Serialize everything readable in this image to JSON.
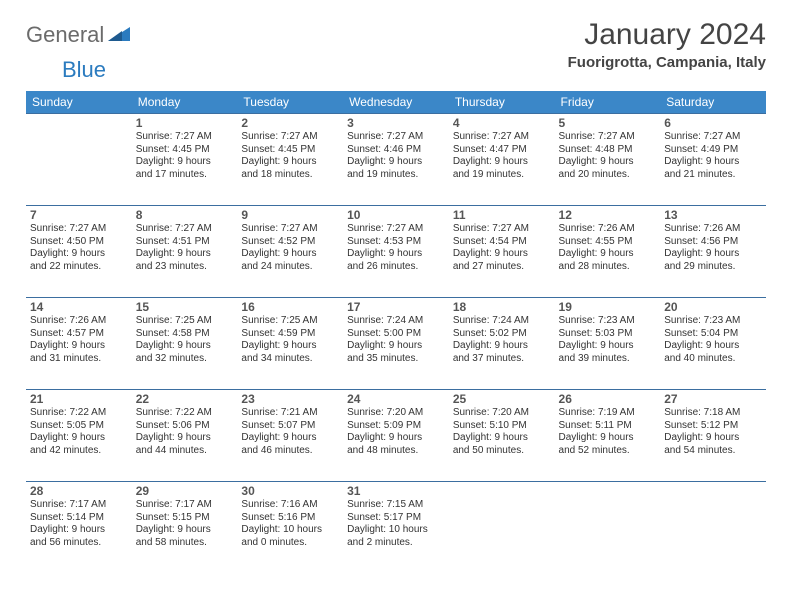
{
  "brand": {
    "gray": "General",
    "blue": "Blue"
  },
  "title": "January 2024",
  "location": "Fuorigrotta, Campania, Italy",
  "colors": {
    "header_bg": "#3b87c8",
    "header_text": "#ffffff",
    "row_border": "#3b6ea0",
    "logo_gray": "#6b6b6b",
    "logo_blue": "#2b7bbf",
    "body_text": "#333333"
  },
  "day_headers": [
    "Sunday",
    "Monday",
    "Tuesday",
    "Wednesday",
    "Thursday",
    "Friday",
    "Saturday"
  ],
  "weeks": [
    [
      null,
      {
        "n": "1",
        "sr": "Sunrise: 7:27 AM",
        "ss": "Sunset: 4:45 PM",
        "d1": "Daylight: 9 hours",
        "d2": "and 17 minutes."
      },
      {
        "n": "2",
        "sr": "Sunrise: 7:27 AM",
        "ss": "Sunset: 4:45 PM",
        "d1": "Daylight: 9 hours",
        "d2": "and 18 minutes."
      },
      {
        "n": "3",
        "sr": "Sunrise: 7:27 AM",
        "ss": "Sunset: 4:46 PM",
        "d1": "Daylight: 9 hours",
        "d2": "and 19 minutes."
      },
      {
        "n": "4",
        "sr": "Sunrise: 7:27 AM",
        "ss": "Sunset: 4:47 PM",
        "d1": "Daylight: 9 hours",
        "d2": "and 19 minutes."
      },
      {
        "n": "5",
        "sr": "Sunrise: 7:27 AM",
        "ss": "Sunset: 4:48 PM",
        "d1": "Daylight: 9 hours",
        "d2": "and 20 minutes."
      },
      {
        "n": "6",
        "sr": "Sunrise: 7:27 AM",
        "ss": "Sunset: 4:49 PM",
        "d1": "Daylight: 9 hours",
        "d2": "and 21 minutes."
      }
    ],
    [
      {
        "n": "7",
        "sr": "Sunrise: 7:27 AM",
        "ss": "Sunset: 4:50 PM",
        "d1": "Daylight: 9 hours",
        "d2": "and 22 minutes."
      },
      {
        "n": "8",
        "sr": "Sunrise: 7:27 AM",
        "ss": "Sunset: 4:51 PM",
        "d1": "Daylight: 9 hours",
        "d2": "and 23 minutes."
      },
      {
        "n": "9",
        "sr": "Sunrise: 7:27 AM",
        "ss": "Sunset: 4:52 PM",
        "d1": "Daylight: 9 hours",
        "d2": "and 24 minutes."
      },
      {
        "n": "10",
        "sr": "Sunrise: 7:27 AM",
        "ss": "Sunset: 4:53 PM",
        "d1": "Daylight: 9 hours",
        "d2": "and 26 minutes."
      },
      {
        "n": "11",
        "sr": "Sunrise: 7:27 AM",
        "ss": "Sunset: 4:54 PM",
        "d1": "Daylight: 9 hours",
        "d2": "and 27 minutes."
      },
      {
        "n": "12",
        "sr": "Sunrise: 7:26 AM",
        "ss": "Sunset: 4:55 PM",
        "d1": "Daylight: 9 hours",
        "d2": "and 28 minutes."
      },
      {
        "n": "13",
        "sr": "Sunrise: 7:26 AM",
        "ss": "Sunset: 4:56 PM",
        "d1": "Daylight: 9 hours",
        "d2": "and 29 minutes."
      }
    ],
    [
      {
        "n": "14",
        "sr": "Sunrise: 7:26 AM",
        "ss": "Sunset: 4:57 PM",
        "d1": "Daylight: 9 hours",
        "d2": "and 31 minutes."
      },
      {
        "n": "15",
        "sr": "Sunrise: 7:25 AM",
        "ss": "Sunset: 4:58 PM",
        "d1": "Daylight: 9 hours",
        "d2": "and 32 minutes."
      },
      {
        "n": "16",
        "sr": "Sunrise: 7:25 AM",
        "ss": "Sunset: 4:59 PM",
        "d1": "Daylight: 9 hours",
        "d2": "and 34 minutes."
      },
      {
        "n": "17",
        "sr": "Sunrise: 7:24 AM",
        "ss": "Sunset: 5:00 PM",
        "d1": "Daylight: 9 hours",
        "d2": "and 35 minutes."
      },
      {
        "n": "18",
        "sr": "Sunrise: 7:24 AM",
        "ss": "Sunset: 5:02 PM",
        "d1": "Daylight: 9 hours",
        "d2": "and 37 minutes."
      },
      {
        "n": "19",
        "sr": "Sunrise: 7:23 AM",
        "ss": "Sunset: 5:03 PM",
        "d1": "Daylight: 9 hours",
        "d2": "and 39 minutes."
      },
      {
        "n": "20",
        "sr": "Sunrise: 7:23 AM",
        "ss": "Sunset: 5:04 PM",
        "d1": "Daylight: 9 hours",
        "d2": "and 40 minutes."
      }
    ],
    [
      {
        "n": "21",
        "sr": "Sunrise: 7:22 AM",
        "ss": "Sunset: 5:05 PM",
        "d1": "Daylight: 9 hours",
        "d2": "and 42 minutes."
      },
      {
        "n": "22",
        "sr": "Sunrise: 7:22 AM",
        "ss": "Sunset: 5:06 PM",
        "d1": "Daylight: 9 hours",
        "d2": "and 44 minutes."
      },
      {
        "n": "23",
        "sr": "Sunrise: 7:21 AM",
        "ss": "Sunset: 5:07 PM",
        "d1": "Daylight: 9 hours",
        "d2": "and 46 minutes."
      },
      {
        "n": "24",
        "sr": "Sunrise: 7:20 AM",
        "ss": "Sunset: 5:09 PM",
        "d1": "Daylight: 9 hours",
        "d2": "and 48 minutes."
      },
      {
        "n": "25",
        "sr": "Sunrise: 7:20 AM",
        "ss": "Sunset: 5:10 PM",
        "d1": "Daylight: 9 hours",
        "d2": "and 50 minutes."
      },
      {
        "n": "26",
        "sr": "Sunrise: 7:19 AM",
        "ss": "Sunset: 5:11 PM",
        "d1": "Daylight: 9 hours",
        "d2": "and 52 minutes."
      },
      {
        "n": "27",
        "sr": "Sunrise: 7:18 AM",
        "ss": "Sunset: 5:12 PM",
        "d1": "Daylight: 9 hours",
        "d2": "and 54 minutes."
      }
    ],
    [
      {
        "n": "28",
        "sr": "Sunrise: 7:17 AM",
        "ss": "Sunset: 5:14 PM",
        "d1": "Daylight: 9 hours",
        "d2": "and 56 minutes."
      },
      {
        "n": "29",
        "sr": "Sunrise: 7:17 AM",
        "ss": "Sunset: 5:15 PM",
        "d1": "Daylight: 9 hours",
        "d2": "and 58 minutes."
      },
      {
        "n": "30",
        "sr": "Sunrise: 7:16 AM",
        "ss": "Sunset: 5:16 PM",
        "d1": "Daylight: 10 hours",
        "d2": "and 0 minutes."
      },
      {
        "n": "31",
        "sr": "Sunrise: 7:15 AM",
        "ss": "Sunset: 5:17 PM",
        "d1": "Daylight: 10 hours",
        "d2": "and 2 minutes."
      },
      null,
      null,
      null
    ]
  ]
}
